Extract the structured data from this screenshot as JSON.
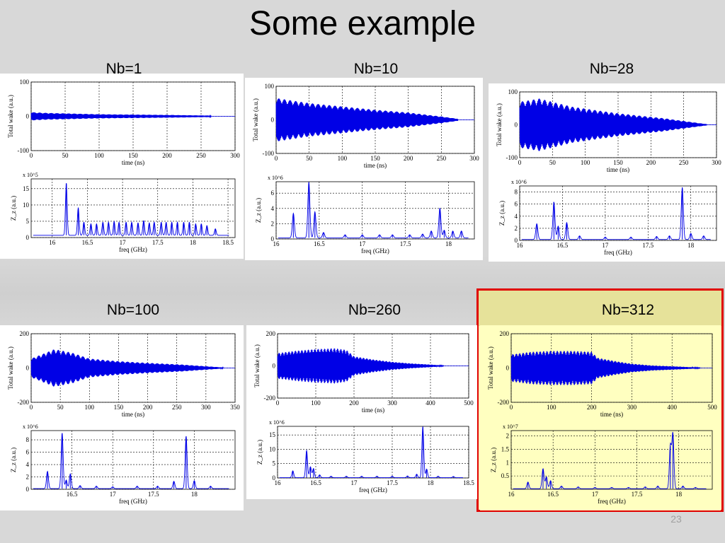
{
  "slide": {
    "title": "Some example",
    "page_number": "23"
  },
  "colors": {
    "signal": "#0000e6",
    "highlight_border": "#e00000",
    "highlight_fill": "#ffffc0"
  },
  "chart_data": [
    {
      "id": "nb1",
      "label": "Nb=1",
      "wake": {
        "type": "line",
        "ylabel": "Total wake (a.u.)",
        "xlabel": "time (ns)",
        "xlim": [
          0,
          300
        ],
        "ylim": [
          -100,
          100
        ],
        "xticks": [
          "0",
          "50",
          "100",
          "150",
          "200",
          "250",
          "300"
        ],
        "yticks": [
          "-100",
          "0",
          "100"
        ],
        "end_time": 265,
        "envelope": [
          [
            0,
            12
          ],
          [
            20,
            10
          ],
          [
            100,
            6
          ],
          [
            200,
            4
          ],
          [
            265,
            2
          ]
        ]
      },
      "spectrum": {
        "type": "line",
        "ylabel": "Z_z (a.u.)",
        "xlabel": "freq (GHz)",
        "exponent": "x 10^5",
        "xlim": [
          15.7,
          18.6
        ],
        "ylim": [
          0,
          18
        ],
        "xticks": [
          "16",
          "16.5",
          "17",
          "17.5",
          "18",
          "18.5"
        ],
        "yticks": [
          "0",
          "5",
          "10",
          "15"
        ],
        "baseline": 0.7,
        "peaks": [
          [
            16.2,
            16
          ],
          [
            16.37,
            8.5
          ],
          [
            16.45,
            4
          ],
          [
            16.55,
            3.5
          ],
          [
            16.63,
            3.5
          ],
          [
            16.72,
            4
          ],
          [
            16.8,
            4
          ],
          [
            16.88,
            4.2
          ],
          [
            16.95,
            4
          ],
          [
            17.05,
            4
          ],
          [
            17.13,
            4
          ],
          [
            17.22,
            3.8
          ],
          [
            17.3,
            4.5
          ],
          [
            17.38,
            3.8
          ],
          [
            17.45,
            4
          ],
          [
            17.55,
            4
          ],
          [
            17.62,
            4
          ],
          [
            17.7,
            4
          ],
          [
            17.78,
            4
          ],
          [
            17.87,
            4
          ],
          [
            17.95,
            4
          ],
          [
            18.04,
            3.5
          ],
          [
            18.12,
            3.5
          ],
          [
            18.2,
            3
          ],
          [
            18.32,
            2
          ]
        ]
      }
    },
    {
      "id": "nb10",
      "label": "Nb=10",
      "wake": {
        "type": "line",
        "ylabel": "Total wake (a.u.)",
        "xlabel": "time (ns)",
        "xlim": [
          0,
          300
        ],
        "ylim": [
          -100,
          100
        ],
        "xticks": [
          "0",
          "50",
          "100",
          "150",
          "200",
          "250",
          "300"
        ],
        "yticks": [
          "-100",
          "0",
          "100"
        ],
        "end_time": 275,
        "envelope": [
          [
            0,
            65
          ],
          [
            50,
            50
          ],
          [
            100,
            40
          ],
          [
            150,
            30
          ],
          [
            200,
            22
          ],
          [
            250,
            10
          ],
          [
            275,
            3
          ]
        ]
      },
      "spectrum": {
        "type": "line",
        "ylabel": "Z_z (a.u.)",
        "xlabel": "freq (GHz)",
        "exponent": "x 10^6",
        "xlim": [
          16,
          18.3
        ],
        "ylim": [
          0,
          7.5
        ],
        "xticks": [
          "16",
          "16.5",
          "17",
          "17.5",
          "18"
        ],
        "yticks": [
          "0",
          "2",
          "4",
          "6"
        ],
        "baseline": 0.15,
        "peaks": [
          [
            16.2,
            3.2
          ],
          [
            16.38,
            7.3
          ],
          [
            16.45,
            3.4
          ],
          [
            16.55,
            0.7
          ],
          [
            16.8,
            0.4
          ],
          [
            17.0,
            0.4
          ],
          [
            17.2,
            0.4
          ],
          [
            17.35,
            0.4
          ],
          [
            17.55,
            0.4
          ],
          [
            17.7,
            0.5
          ],
          [
            17.8,
            0.9
          ],
          [
            17.9,
            3.9
          ],
          [
            17.95,
            1
          ],
          [
            18.05,
            0.9
          ],
          [
            18.15,
            0.9
          ]
        ]
      }
    },
    {
      "id": "nb28",
      "label": "Nb=28",
      "wake": {
        "type": "line",
        "ylabel": "Total wake (a.u.)",
        "xlabel": "time (ns)",
        "xlim": [
          0,
          300
        ],
        "ylim": [
          -100,
          100
        ],
        "xticks": [
          "0",
          "50",
          "100",
          "150",
          "200",
          "250",
          "300"
        ],
        "yticks": [
          "-100",
          "0",
          "100"
        ],
        "end_time": 285,
        "envelope": [
          [
            0,
            70
          ],
          [
            30,
            80
          ],
          [
            80,
            55
          ],
          [
            150,
            35
          ],
          [
            220,
            20
          ],
          [
            270,
            6
          ],
          [
            285,
            2
          ]
        ]
      },
      "spectrum": {
        "type": "line",
        "ylabel": "Z_z (a.u.)",
        "xlabel": "freq (GHz)",
        "exponent": "x 10^6",
        "xlim": [
          16,
          18.3
        ],
        "ylim": [
          0,
          9
        ],
        "xticks": [
          "16",
          "16.5",
          "17",
          "17.5",
          "18"
        ],
        "yticks": [
          "0",
          "2",
          "4",
          "6",
          "8"
        ],
        "baseline": 0.15,
        "peaks": [
          [
            16.2,
            2.6
          ],
          [
            16.4,
            6.2
          ],
          [
            16.45,
            2.2
          ],
          [
            16.55,
            2.8
          ],
          [
            16.7,
            0.6
          ],
          [
            17.0,
            0.4
          ],
          [
            17.3,
            0.4
          ],
          [
            17.6,
            0.5
          ],
          [
            17.75,
            0.6
          ],
          [
            17.9,
            8.6
          ],
          [
            18.0,
            1
          ],
          [
            18.15,
            0.6
          ]
        ]
      }
    },
    {
      "id": "nb100",
      "label": "Nb=100",
      "wake": {
        "type": "line",
        "ylabel": "Total wake (a.u.)",
        "xlabel": "time (ns)",
        "xlim": [
          0,
          350
        ],
        "ylim": [
          -200,
          200
        ],
        "xticks": [
          "0",
          "50",
          "100",
          "150",
          "200",
          "250",
          "300",
          "350"
        ],
        "yticks": [
          "-200",
          "0",
          "200"
        ],
        "end_time": 330,
        "envelope": [
          [
            0,
            55
          ],
          [
            40,
            110
          ],
          [
            70,
            90
          ],
          [
            100,
            55
          ],
          [
            150,
            40
          ],
          [
            200,
            30
          ],
          [
            260,
            20
          ],
          [
            300,
            10
          ],
          [
            330,
            3
          ]
        ]
      },
      "spectrum": {
        "type": "line",
        "ylabel": "Z_z (a.u.)",
        "xlabel": "freq (GHz)",
        "exponent": "x 10^6",
        "xlim": [
          16,
          18.5
        ],
        "ylim": [
          0,
          9.5
        ],
        "xticks": [
          "16.5",
          "17",
          "17.5",
          "18"
        ],
        "yticks": [
          "0",
          "2",
          "4",
          "6",
          "8"
        ],
        "baseline": 0.1,
        "peaks": [
          [
            16.2,
            2.8
          ],
          [
            16.38,
            9
          ],
          [
            16.43,
            1.4
          ],
          [
            16.48,
            2.4
          ],
          [
            16.6,
            0.5
          ],
          [
            16.8,
            0.4
          ],
          [
            17.0,
            0.3
          ],
          [
            17.3,
            0.4
          ],
          [
            17.55,
            0.4
          ],
          [
            17.75,
            1.2
          ],
          [
            17.9,
            8.5
          ],
          [
            18.0,
            1.3
          ],
          [
            18.2,
            0.4
          ]
        ]
      }
    },
    {
      "id": "nb260",
      "label": "Nb=260",
      "wake": {
        "type": "line",
        "ylabel": "Total wake (a.u.)",
        "xlabel": "time (ns)",
        "xlim": [
          0,
          500
        ],
        "ylim": [
          -200,
          200
        ],
        "xticks": [
          "0",
          "100",
          "200",
          "300",
          "400",
          "500"
        ],
        "yticks": [
          "-200",
          "0",
          "200"
        ],
        "end_time": 435,
        "envelope": [
          [
            0,
            80
          ],
          [
            50,
            95
          ],
          [
            100,
            105
          ],
          [
            150,
            110
          ],
          [
            180,
            100
          ],
          [
            200,
            60
          ],
          [
            250,
            40
          ],
          [
            300,
            25
          ],
          [
            350,
            15
          ],
          [
            400,
            8
          ],
          [
            435,
            2
          ]
        ]
      },
      "spectrum": {
        "type": "line",
        "ylabel": "Z_z (a.u.)",
        "xlabel": "freq (GHz)",
        "exponent": "x 10^6",
        "xlim": [
          16,
          18.5
        ],
        "ylim": [
          0,
          18
        ],
        "xticks": [
          "16",
          "16.5",
          "17",
          "17.5",
          "18",
          "18.5"
        ],
        "yticks": [
          "0",
          "5",
          "10",
          "15"
        ],
        "baseline": 0.1,
        "peaks": [
          [
            16.2,
            2.4
          ],
          [
            16.38,
            9.5
          ],
          [
            16.43,
            3.8
          ],
          [
            16.47,
            3.2
          ],
          [
            16.55,
            1
          ],
          [
            16.7,
            0.5
          ],
          [
            16.9,
            0.5
          ],
          [
            17.1,
            0.5
          ],
          [
            17.3,
            0.5
          ],
          [
            17.5,
            0.5
          ],
          [
            17.7,
            0.6
          ],
          [
            17.82,
            1.2
          ],
          [
            17.9,
            17.8
          ],
          [
            17.95,
            3
          ],
          [
            18.1,
            0.5
          ],
          [
            18.3,
            0.4
          ]
        ]
      }
    },
    {
      "id": "nb312",
      "label": "Nb=312",
      "wake": {
        "type": "line",
        "ylabel": "Total wake (a.u.)",
        "xlabel": "time (ns)",
        "xlim": [
          0,
          500
        ],
        "ylim": [
          -200,
          200
        ],
        "xticks": [
          "0",
          "100",
          "200",
          "300",
          "400",
          "500"
        ],
        "yticks": [
          "-200",
          "0",
          "200"
        ],
        "end_time": 470,
        "envelope": [
          [
            0,
            80
          ],
          [
            50,
            95
          ],
          [
            100,
            100
          ],
          [
            150,
            100
          ],
          [
            200,
            95
          ],
          [
            215,
            60
          ],
          [
            260,
            40
          ],
          [
            300,
            25
          ],
          [
            350,
            15
          ],
          [
            420,
            8
          ],
          [
            470,
            2
          ]
        ]
      },
      "spectrum": {
        "type": "line",
        "ylabel": "Z_z (a.u.)",
        "xlabel": "freq (GHz)",
        "exponent": "x 10^7",
        "xlim": [
          16,
          18.4
        ],
        "ylim": [
          0,
          2.2
        ],
        "xticks": [
          "16",
          "16.5",
          "17",
          "17.5",
          "18"
        ],
        "yticks": [
          "0.5",
          "1",
          "1.5",
          "2"
        ],
        "baseline": 0.02,
        "peaks": [
          [
            16.2,
            0.25
          ],
          [
            16.38,
            0.75
          ],
          [
            16.42,
            0.45
          ],
          [
            16.47,
            0.3
          ],
          [
            16.6,
            0.1
          ],
          [
            16.8,
            0.07
          ],
          [
            17.0,
            0.05
          ],
          [
            17.2,
            0.05
          ],
          [
            17.4,
            0.05
          ],
          [
            17.6,
            0.07
          ],
          [
            17.75,
            0.1
          ],
          [
            17.9,
            1.6
          ],
          [
            17.93,
            2.05
          ],
          [
            18.05,
            0.1
          ],
          [
            18.2,
            0.05
          ]
        ]
      }
    }
  ]
}
